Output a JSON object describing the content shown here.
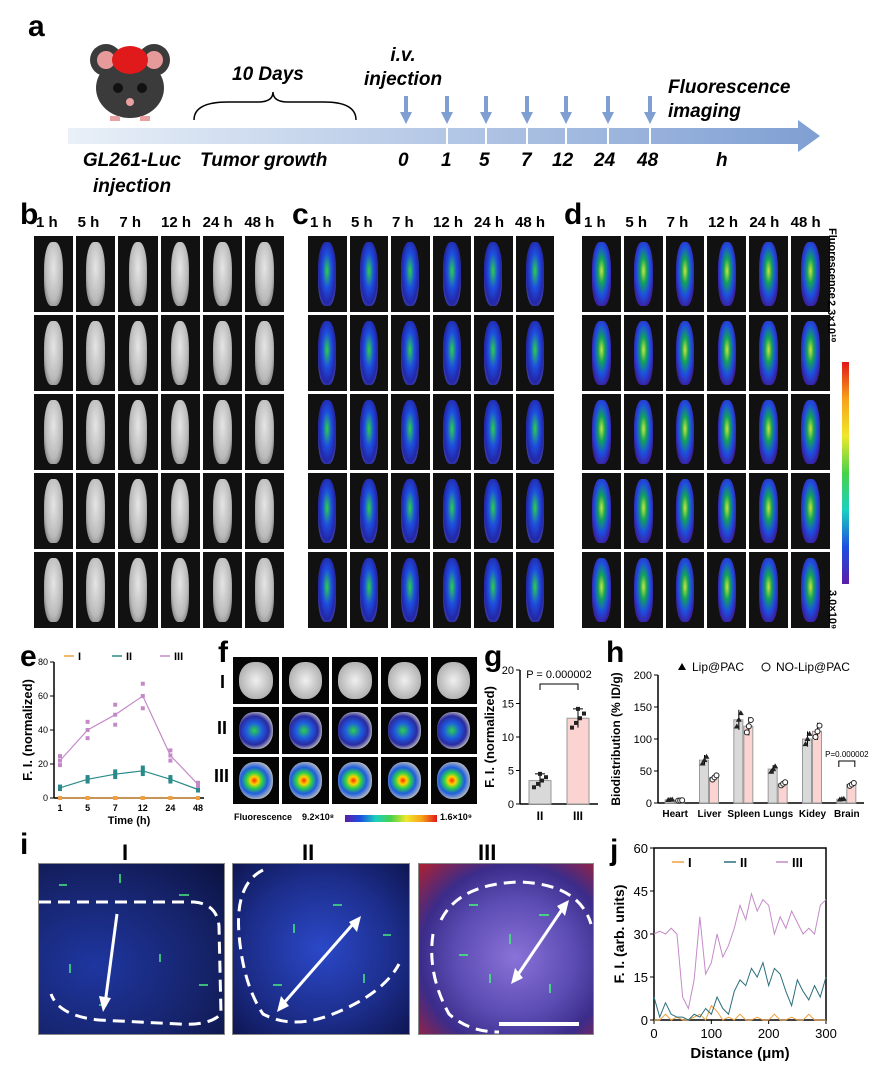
{
  "panel_labels": {
    "a": "a",
    "b": "b",
    "c": "c",
    "d": "d",
    "e": "e",
    "f": "f",
    "g": "g",
    "h": "h",
    "i": "i",
    "j": "j"
  },
  "timeline": {
    "days_label": "10 Days",
    "injection_label": "i.v. injection",
    "imaging_label": "Fluorescence imaging",
    "left_label": "GL261-Luc injection",
    "tumor_label": "Tumor growth",
    "timepoints": [
      "0",
      "1",
      "5",
      "7",
      "12",
      "24",
      "48"
    ],
    "unit": "h"
  },
  "imaging": {
    "headers": [
      "1 h",
      "5 h",
      "7 h",
      "12 h",
      "24 h",
      "48 h"
    ],
    "colorbar_title": "Fluorescence",
    "colorbar_max": "2.3×10¹⁰",
    "colorbar_min": "3.0×10⁹"
  },
  "panel_e": {
    "legend": [
      "I",
      "II",
      "III"
    ],
    "colors": [
      "#f0a040",
      "#2a8a8a",
      "#c48ac8"
    ],
    "chart_data": {
      "type": "line",
      "xlabel": "Time (h)",
      "ylabel": "F. I. (normalized)",
      "categories": [
        "1",
        "5",
        "7",
        "12",
        "24",
        "48"
      ],
      "ylim": [
        0,
        80
      ],
      "yticks": [
        0,
        20,
        40,
        60,
        80
      ],
      "series": [
        {
          "name": "I",
          "values": [
            0,
            0,
            0,
            0,
            0,
            0
          ]
        },
        {
          "name": "II",
          "values": [
            6,
            11,
            14,
            16,
            11,
            5
          ]
        },
        {
          "name": "III",
          "values": [
            22,
            40,
            49,
            60,
            25,
            8
          ]
        }
      ]
    }
  },
  "panel_f": {
    "rows": [
      "I",
      "II",
      "III"
    ],
    "colorbar_title": "Fluorescence",
    "colorbar_min": "9.2×10⁸",
    "colorbar_max": "1.6×10⁹"
  },
  "panel_g": {
    "pvalue": "P = 0.000002",
    "chart_data": {
      "type": "bar",
      "categories": [
        "II",
        "III"
      ],
      "values": [
        3.5,
        12.8
      ],
      "errors": [
        1.0,
        1.4
      ],
      "ylabel": "F. I. (normalized)",
      "ylim": [
        0,
        20
      ],
      "yticks": [
        0,
        5,
        10,
        15,
        20
      ],
      "colors": [
        "#d9d9d9",
        "#fbd3d0"
      ]
    }
  },
  "panel_h": {
    "legend": [
      "Lip@PAC",
      "NO-Lip@PAC"
    ],
    "pvalue": "P=0.000002",
    "chart_data": {
      "type": "bar",
      "categories": [
        "Heart",
        "Liver",
        "Spleen",
        "Lungs",
        "Kidey",
        "Brain"
      ],
      "series": [
        {
          "name": "Lip@PAC",
          "values": [
            5,
            67,
            130,
            53,
            100,
            6
          ]
        },
        {
          "name": "NO-Lip@PAC",
          "values": [
            4,
            40,
            120,
            30,
            112,
            29
          ]
        }
      ],
      "ylabel": "Biodistribution (% ID/g)",
      "ylim": [
        0,
        200
      ],
      "yticks": [
        0,
        50,
        100,
        150,
        200
      ],
      "colors": [
        "#d9d9d9",
        "#fbd3d0"
      ]
    }
  },
  "panel_i": {
    "labels": [
      "I",
      "II",
      "III"
    ]
  },
  "panel_j": {
    "legend": [
      "I",
      "II",
      "III"
    ],
    "colors": [
      "#f0a040",
      "#2a6f7a",
      "#c48ac8"
    ],
    "chart_data": {
      "type": "line",
      "xlabel": "Distance (μm)",
      "ylabel": "F. I. (arb. units)",
      "xlim": [
        0,
        300
      ],
      "ylim": [
        0,
        60
      ],
      "xticks": [
        0,
        100,
        200,
        300
      ],
      "yticks": [
        0,
        15,
        30,
        45,
        60
      ],
      "x": [
        0,
        10,
        20,
        30,
        40,
        50,
        60,
        70,
        80,
        90,
        100,
        110,
        120,
        130,
        140,
        150,
        160,
        170,
        180,
        190,
        200,
        210,
        220,
        230,
        240,
        250,
        260,
        270,
        280,
        290,
        300
      ],
      "series": [
        {
          "name": "I",
          "values": [
            0,
            0,
            2,
            0,
            1,
            0,
            0,
            1,
            2,
            0,
            5,
            3,
            0,
            1,
            0,
            2,
            0,
            0,
            1,
            0,
            0,
            2,
            0,
            0,
            1,
            0,
            0,
            2,
            0,
            0,
            0
          ]
        },
        {
          "name": "II",
          "values": [
            8,
            1,
            6,
            2,
            1,
            1,
            0,
            2,
            1,
            4,
            2,
            8,
            4,
            2,
            10,
            14,
            12,
            18,
            15,
            20,
            12,
            18,
            16,
            10,
            5,
            14,
            10,
            7,
            12,
            8,
            15
          ]
        },
        {
          "name": "III",
          "values": [
            30,
            31,
            30,
            32,
            30,
            8,
            4,
            14,
            36,
            16,
            20,
            30,
            22,
            26,
            32,
            40,
            35,
            44,
            38,
            42,
            40,
            30,
            36,
            32,
            38,
            34,
            30,
            32,
            30,
            40,
            42
          ]
        }
      ]
    }
  }
}
